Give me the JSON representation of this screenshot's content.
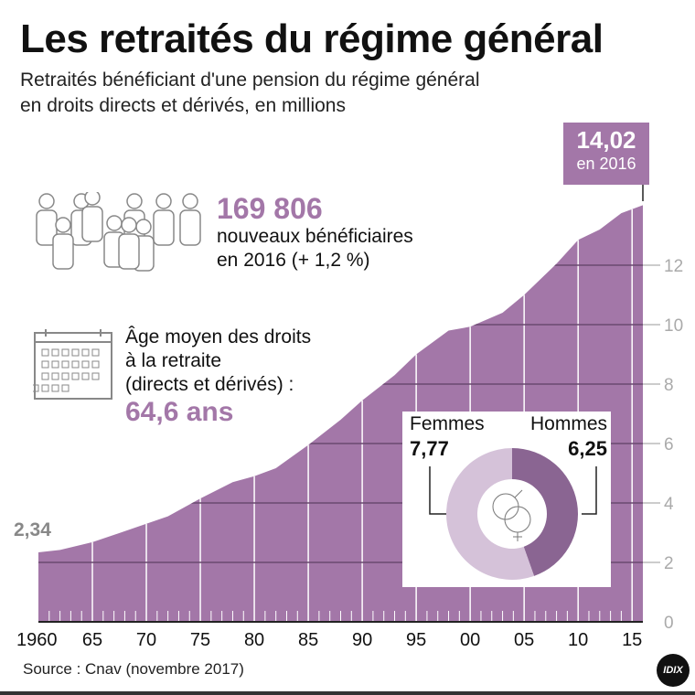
{
  "title": "Les retraités du régime général",
  "subtitle_line1": "Retraités bénéficiant d'une pension du régime général",
  "subtitle_line2": "en droits directs et dérivés, en millions",
  "colors": {
    "area": "#a377a8",
    "hommes": "#8a6592",
    "femmes": "#d5c2d9",
    "highlight": "#a377a8"
  },
  "annotation_end": {
    "value": "14,02",
    "year": "en 2016"
  },
  "annotation_start": "2,34",
  "new_beneficiaries": {
    "icon": "people-icon",
    "value": "169 806",
    "line1": "nouveaux bénéficiaires",
    "line2": "en 2016 (+ 1,2 %)"
  },
  "average_age": {
    "icon": "calendar-icon",
    "line1": "Âge moyen des droits",
    "line2": "à la retraite",
    "line3": "(directs et dérivés) :",
    "value": "64,6 ans"
  },
  "gender": {
    "femmes_label": "Femmes",
    "femmes_value": "7,77",
    "hommes_label": "Hommes",
    "hommes_value": "6,25",
    "icon": "gender-symbols-icon"
  },
  "source": "Source : Cnav (novembre 2017)",
  "logo": "IDIX",
  "chart_data": {
    "type": "area",
    "title": "Les retraités du régime général",
    "ylabel": "",
    "xlabel": "",
    "ylim": [
      0,
      14.02
    ],
    "y_ticks": [
      "0",
      "2",
      "4",
      "6",
      "8",
      "10",
      "12"
    ],
    "x_tick_labels": [
      "1960",
      "65",
      "70",
      "75",
      "80",
      "85",
      "90",
      "95",
      "00",
      "05",
      "10",
      "15"
    ],
    "x_tick_years": [
      1960,
      1965,
      1970,
      1975,
      1980,
      1985,
      1990,
      1995,
      2000,
      2005,
      2010,
      2015
    ],
    "grid": true,
    "x": [
      1960,
      1962,
      1965,
      1968,
      1970,
      1972,
      1975,
      1978,
      1980,
      1982,
      1985,
      1988,
      1990,
      1993,
      1995,
      1998,
      2000,
      2003,
      2005,
      2008,
      2010,
      2012,
      2014,
      2016
    ],
    "values": [
      2.34,
      2.42,
      2.68,
      3.05,
      3.3,
      3.55,
      4.15,
      4.7,
      4.9,
      5.17,
      5.95,
      6.8,
      7.45,
      8.3,
      9.0,
      9.8,
      9.93,
      10.4,
      11.0,
      12.05,
      12.85,
      13.2,
      13.75,
      14.02
    ],
    "donut": {
      "categories": [
        "Femmes",
        "Hommes"
      ],
      "values": [
        7.77,
        6.25
      ]
    }
  }
}
